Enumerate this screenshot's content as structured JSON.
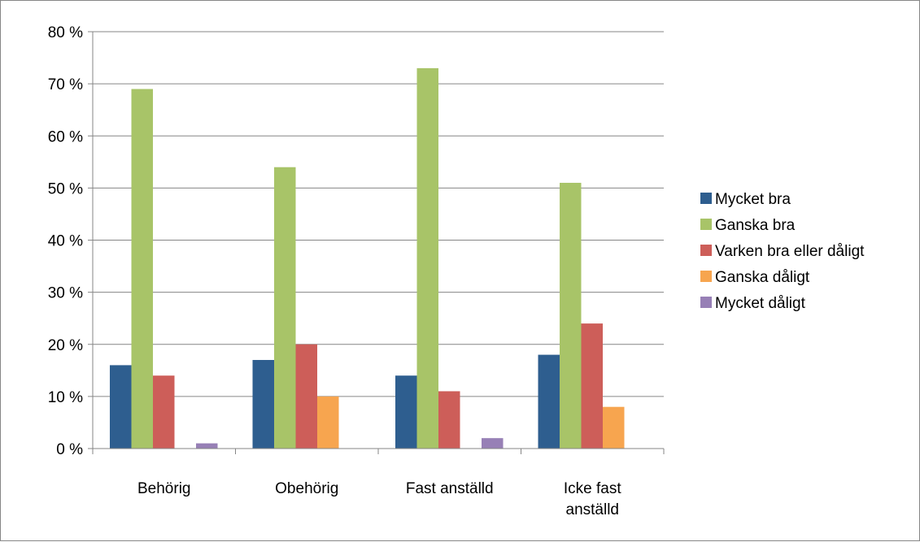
{
  "chart_data": {
    "type": "bar",
    "title": "",
    "xlabel": "",
    "ylabel": "",
    "ylim": [
      0,
      80
    ],
    "yticks": [
      0,
      10,
      20,
      30,
      40,
      50,
      60,
      70,
      80
    ],
    "ytick_labels": [
      "0 %",
      "10 %",
      "20 %",
      "30 %",
      "40 %",
      "50 %",
      "60 %",
      "70 %",
      "80 %"
    ],
    "categories": [
      "Behörig",
      "Obehörig",
      "Fast anställd",
      "Icke fast anställd"
    ],
    "category_lines": [
      [
        "Behörig"
      ],
      [
        "Obehörig"
      ],
      [
        "Fast anställd"
      ],
      [
        "Icke fast",
        "anställd"
      ]
    ],
    "grid": true,
    "legend_position": "right",
    "series": [
      {
        "name": "Mycket bra",
        "color": "#2E5E8F",
        "values": [
          16,
          17,
          14,
          18
        ]
      },
      {
        "name": "Ganska bra",
        "color": "#A8C468",
        "values": [
          69,
          54,
          73,
          51
        ]
      },
      {
        "name": "Varken bra eller dåligt",
        "color": "#CD5E59",
        "values": [
          14,
          20,
          11,
          24
        ]
      },
      {
        "name": "Ganska dåligt",
        "color": "#F7A54F",
        "values": [
          0,
          10,
          0,
          8
        ]
      },
      {
        "name": "Mycket dåligt",
        "color": "#9780B6",
        "values": [
          1,
          0,
          2,
          0
        ]
      }
    ]
  }
}
